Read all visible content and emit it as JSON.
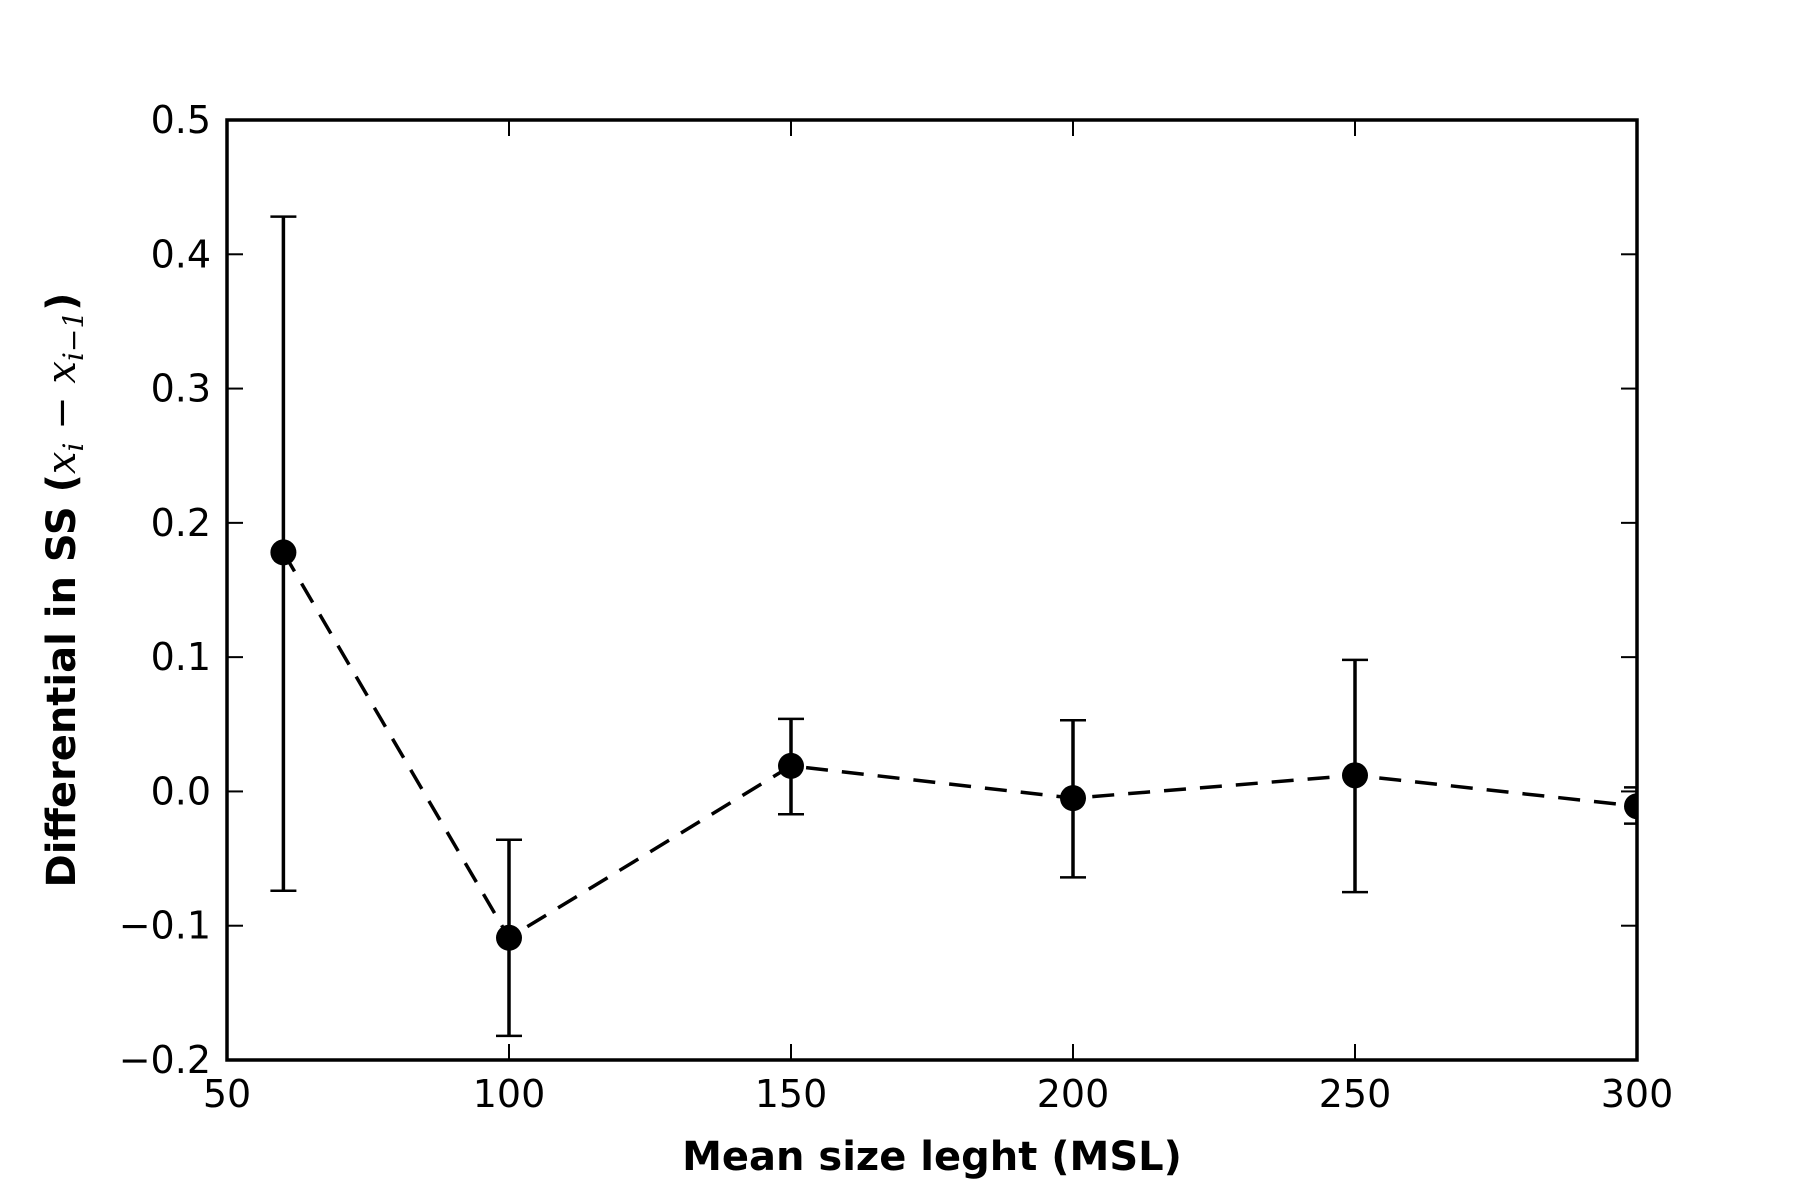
{
  "chart_data": {
    "type": "line",
    "title": "",
    "xlabel": "Mean size leght (MSL)",
    "ylabel": {
      "prefix": "Differential in SS (",
      "x1": "x",
      "sub1": "i",
      "minus": " − ",
      "x2": "x",
      "sub2": "i−1",
      "suffix": ")"
    },
    "xlim": [
      50,
      300
    ],
    "ylim": [
      -0.2,
      0.5
    ],
    "xticks": [
      "50",
      "100",
      "150",
      "200",
      "250",
      "300"
    ],
    "yticks": [
      "−0.2",
      "−0.1",
      "0.0",
      "0.1",
      "0.2",
      "0.3",
      "0.4",
      "0.5"
    ],
    "grid": false,
    "legend": "none",
    "colors": {
      "line": "#000000",
      "marker": "#000000",
      "frame": "#000000"
    },
    "series": [
      {
        "line_style": "dashed",
        "marker": "circle",
        "points": [
          {
            "x": 60,
            "y": 0.178,
            "err_low": -0.074,
            "err_high": 0.428
          },
          {
            "x": 100,
            "y": -0.109,
            "err_low": -0.182,
            "err_high": -0.036
          },
          {
            "x": 150,
            "y": 0.019,
            "err_low": -0.017,
            "err_high": 0.054
          },
          {
            "x": 200,
            "y": -0.005,
            "err_low": -0.064,
            "err_high": 0.053
          },
          {
            "x": 250,
            "y": 0.012,
            "err_low": -0.075,
            "err_high": 0.098
          },
          {
            "x": 300,
            "y": -0.011,
            "err_low": -0.024,
            "err_high": 0.003
          }
        ]
      }
    ]
  }
}
